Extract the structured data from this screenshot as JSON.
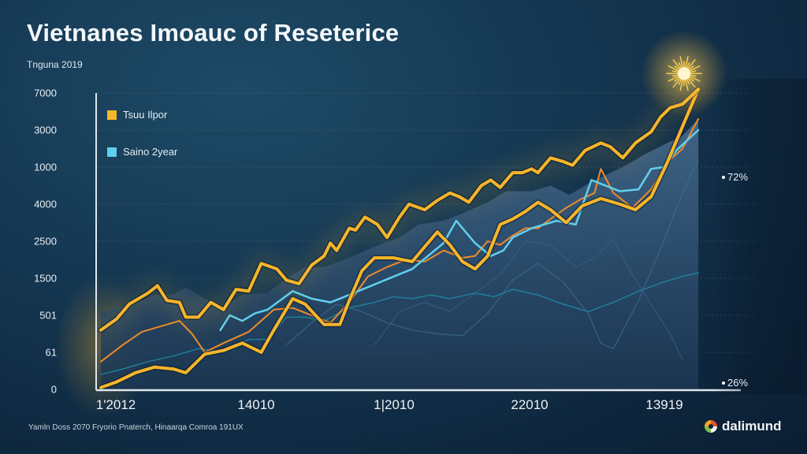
{
  "header": {
    "title": "Vietnanes Imoauc of Reseterice",
    "subtitle": "Tnguna 2019"
  },
  "footer": {
    "source": "Yamln Doss 2070 Fryorio Pnaterch, Hinaarqa Comroa 191UX",
    "brand_name": "dalimund"
  },
  "annotations": [
    {
      "label": "72%",
      "series": "upper-right marker"
    },
    {
      "label": "26%",
      "series": "lower-right marker"
    }
  ],
  "colors": {
    "series_gold": "#f7b52a",
    "series_orange": "#f08a2a",
    "series_cyan": "#5fd0ee",
    "series_teal": "#1f7f9a",
    "area_fill": "#3a5d7e",
    "axis": "#dfe6ec",
    "grid": "#5a7690",
    "burst": "#ffd25a"
  },
  "chart_data": {
    "type": "line",
    "title": "Vietnanes Imoauc of Reseterice",
    "subtitle": "Tnguna 2019",
    "xlabel": "",
    "ylabel": "",
    "x_tick_labels": [
      "1'2012",
      "14010",
      "1|2010",
      "22010",
      "13919"
    ],
    "y_tick_labels": [
      "0",
      "61",
      "501",
      "1500",
      "2500",
      "4000",
      "1000",
      "3000",
      "7000"
    ],
    "y_scale_note": "values below are in tick-band units: 0 = bottom tick ('0'), 8 = top tick ('7000'); x in 0..1 across the plot",
    "ylim": [
      0,
      8
    ],
    "xlim": [
      0,
      1
    ],
    "grid": true,
    "legend": {
      "placement": "top-left",
      "entries": [
        {
          "name": "Tsuu Ilpor",
          "color": "#f7b52a"
        },
        {
          "name": "Saino 2year",
          "color": "#5fd0ee"
        }
      ]
    },
    "series": [
      {
        "name": "Tsuu Ilpor",
        "role": "upper gold line",
        "color": "#f7b52a",
        "width": 4,
        "glow": true,
        "points": [
          [
            0.005,
            1.6
          ],
          [
            0.03,
            1.9
          ],
          [
            0.05,
            2.3
          ],
          [
            0.08,
            2.6
          ],
          [
            0.095,
            2.8
          ],
          [
            0.11,
            2.4
          ],
          [
            0.13,
            2.35
          ],
          [
            0.14,
            1.95
          ],
          [
            0.16,
            1.95
          ],
          [
            0.18,
            2.35
          ],
          [
            0.2,
            2.15
          ],
          [
            0.22,
            2.7
          ],
          [
            0.24,
            2.65
          ],
          [
            0.26,
            3.4
          ],
          [
            0.285,
            3.25
          ],
          [
            0.3,
            2.95
          ],
          [
            0.32,
            2.85
          ],
          [
            0.34,
            3.35
          ],
          [
            0.36,
            3.6
          ],
          [
            0.37,
            3.95
          ],
          [
            0.38,
            3.75
          ],
          [
            0.4,
            4.35
          ],
          [
            0.41,
            4.3
          ],
          [
            0.425,
            4.65
          ],
          [
            0.445,
            4.45
          ],
          [
            0.46,
            4.1
          ],
          [
            0.48,
            4.65
          ],
          [
            0.495,
            5.0
          ],
          [
            0.52,
            4.85
          ],
          [
            0.54,
            5.1
          ],
          [
            0.56,
            5.3
          ],
          [
            0.575,
            5.2
          ],
          [
            0.59,
            5.05
          ],
          [
            0.61,
            5.5
          ],
          [
            0.625,
            5.65
          ],
          [
            0.64,
            5.45
          ],
          [
            0.66,
            5.85
          ],
          [
            0.675,
            5.85
          ],
          [
            0.69,
            5.95
          ],
          [
            0.7,
            5.85
          ],
          [
            0.72,
            6.25
          ],
          [
            0.74,
            6.15
          ],
          [
            0.755,
            6.05
          ],
          [
            0.775,
            6.45
          ],
          [
            0.8,
            6.65
          ],
          [
            0.815,
            6.55
          ],
          [
            0.835,
            6.25
          ],
          [
            0.855,
            6.65
          ],
          [
            0.88,
            6.95
          ],
          [
            0.895,
            7.35
          ],
          [
            0.91,
            7.6
          ],
          [
            0.93,
            7.7
          ],
          [
            0.955,
            8.1
          ]
        ]
      },
      {
        "name": "gold-lower",
        "role": "lower gold line",
        "color": "#f7b52a",
        "width": 4,
        "glow": false,
        "points": [
          [
            0.005,
            0.05
          ],
          [
            0.03,
            0.2
          ],
          [
            0.06,
            0.45
          ],
          [
            0.09,
            0.6
          ],
          [
            0.12,
            0.55
          ],
          [
            0.14,
            0.45
          ],
          [
            0.17,
            0.95
          ],
          [
            0.2,
            1.05
          ],
          [
            0.23,
            1.25
          ],
          [
            0.26,
            1.0
          ],
          [
            0.28,
            1.6
          ],
          [
            0.31,
            2.45
          ],
          [
            0.33,
            2.3
          ],
          [
            0.36,
            1.75
          ],
          [
            0.385,
            1.75
          ],
          [
            0.4,
            2.4
          ],
          [
            0.42,
            3.2
          ],
          [
            0.44,
            3.55
          ],
          [
            0.47,
            3.55
          ],
          [
            0.5,
            3.45
          ],
          [
            0.52,
            3.85
          ],
          [
            0.54,
            4.25
          ],
          [
            0.56,
            3.9
          ],
          [
            0.58,
            3.45
          ],
          [
            0.6,
            3.25
          ],
          [
            0.62,
            3.6
          ],
          [
            0.64,
            4.45
          ],
          [
            0.66,
            4.6
          ],
          [
            0.68,
            4.8
          ],
          [
            0.7,
            5.05
          ],
          [
            0.72,
            4.85
          ],
          [
            0.745,
            4.5
          ],
          [
            0.77,
            4.95
          ],
          [
            0.8,
            5.15
          ],
          [
            0.83,
            5.0
          ],
          [
            0.855,
            4.85
          ],
          [
            0.88,
            5.2
          ],
          [
            0.905,
            6.1
          ],
          [
            0.93,
            7.1
          ],
          [
            0.955,
            8.1
          ]
        ]
      },
      {
        "name": "orange",
        "role": "orange line",
        "color": "#f08a2a",
        "width": 2,
        "glow": false,
        "points": [
          [
            0.005,
            0.75
          ],
          [
            0.04,
            1.2
          ],
          [
            0.07,
            1.55
          ],
          [
            0.1,
            1.7
          ],
          [
            0.13,
            1.85
          ],
          [
            0.15,
            1.5
          ],
          [
            0.17,
            1.0
          ],
          [
            0.2,
            1.25
          ],
          [
            0.24,
            1.55
          ],
          [
            0.28,
            2.15
          ],
          [
            0.31,
            2.2
          ],
          [
            0.34,
            2.0
          ],
          [
            0.37,
            1.8
          ],
          [
            0.4,
            2.35
          ],
          [
            0.43,
            3.05
          ],
          [
            0.46,
            3.3
          ],
          [
            0.49,
            3.5
          ],
          [
            0.52,
            3.45
          ],
          [
            0.55,
            3.75
          ],
          [
            0.58,
            3.55
          ],
          [
            0.6,
            3.6
          ],
          [
            0.62,
            4.0
          ],
          [
            0.64,
            3.9
          ],
          [
            0.66,
            4.15
          ],
          [
            0.68,
            4.35
          ],
          [
            0.7,
            4.35
          ],
          [
            0.72,
            4.6
          ],
          [
            0.745,
            4.9
          ],
          [
            0.77,
            5.15
          ],
          [
            0.79,
            5.3
          ],
          [
            0.8,
            5.95
          ],
          [
            0.82,
            5.3
          ],
          [
            0.85,
            4.9
          ],
          [
            0.88,
            5.4
          ],
          [
            0.91,
            6.2
          ],
          [
            0.93,
            6.5
          ],
          [
            0.955,
            7.3
          ]
        ]
      },
      {
        "name": "Saino 2year",
        "role": "cyan line",
        "color": "#5fd0ee",
        "width": 2.5,
        "glow": false,
        "points": [
          [
            0.195,
            1.6
          ],
          [
            0.21,
            2.0
          ],
          [
            0.23,
            1.85
          ],
          [
            0.25,
            2.05
          ],
          [
            0.27,
            2.15
          ],
          [
            0.31,
            2.65
          ],
          [
            0.34,
            2.45
          ],
          [
            0.37,
            2.35
          ],
          [
            0.385,
            2.45
          ],
          [
            0.5,
            3.25
          ],
          [
            0.55,
            3.95
          ],
          [
            0.57,
            4.55
          ],
          [
            0.6,
            3.95
          ],
          [
            0.625,
            3.6
          ],
          [
            0.645,
            3.75
          ],
          [
            0.66,
            4.1
          ],
          [
            0.69,
            4.35
          ],
          [
            0.73,
            4.55
          ],
          [
            0.76,
            4.45
          ],
          [
            0.785,
            5.65
          ],
          [
            0.8,
            5.55
          ],
          [
            0.83,
            5.35
          ],
          [
            0.86,
            5.4
          ],
          [
            0.88,
            5.95
          ],
          [
            0.9,
            6.0
          ],
          [
            0.92,
            6.45
          ],
          [
            0.955,
            7.0
          ]
        ]
      },
      {
        "name": "teal",
        "role": "faint teal line",
        "color": "#1f7f9a",
        "width": 1.5,
        "glow": false,
        "points": [
          [
            0.005,
            0.4
          ],
          [
            0.04,
            0.55
          ],
          [
            0.08,
            0.75
          ],
          [
            0.12,
            0.9
          ],
          [
            0.16,
            1.1
          ],
          [
            0.2,
            1.0
          ],
          [
            0.24,
            1.35
          ],
          [
            0.27,
            1.35
          ],
          [
            0.3,
            1.95
          ],
          [
            0.33,
            1.95
          ],
          [
            0.36,
            1.85
          ],
          [
            0.4,
            2.2
          ],
          [
            0.44,
            2.35
          ],
          [
            0.47,
            2.5
          ],
          [
            0.5,
            2.45
          ],
          [
            0.53,
            2.55
          ],
          [
            0.56,
            2.45
          ],
          [
            0.6,
            2.6
          ],
          [
            0.63,
            2.5
          ],
          [
            0.66,
            2.7
          ],
          [
            0.7,
            2.55
          ],
          [
            0.74,
            2.3
          ],
          [
            0.78,
            2.1
          ],
          [
            0.82,
            2.35
          ],
          [
            0.86,
            2.65
          ],
          [
            0.9,
            2.9
          ],
          [
            0.93,
            3.05
          ],
          [
            0.955,
            3.15
          ]
        ]
      }
    ],
    "background_area": {
      "name": "shaded area",
      "color": "#3a5d7e",
      "upper": [
        [
          0.005,
          2.1
        ],
        [
          0.05,
          2.25
        ],
        [
          0.09,
          2.55
        ],
        [
          0.12,
          2.55
        ],
        [
          0.14,
          2.75
        ],
        [
          0.17,
          2.45
        ],
        [
          0.2,
          2.25
        ],
        [
          0.23,
          2.55
        ],
        [
          0.27,
          2.6
        ],
        [
          0.3,
          3.0
        ],
        [
          0.33,
          3.3
        ],
        [
          0.36,
          3.3
        ],
        [
          0.4,
          3.55
        ],
        [
          0.44,
          3.85
        ],
        [
          0.48,
          4.1
        ],
        [
          0.51,
          4.45
        ],
        [
          0.55,
          4.55
        ],
        [
          0.58,
          4.75
        ],
        [
          0.62,
          5.05
        ],
        [
          0.65,
          5.35
        ],
        [
          0.69,
          5.35
        ],
        [
          0.72,
          5.5
        ],
        [
          0.75,
          5.25
        ],
        [
          0.78,
          5.55
        ],
        [
          0.81,
          5.8
        ],
        [
          0.84,
          6.05
        ],
        [
          0.87,
          6.35
        ],
        [
          0.9,
          6.6
        ],
        [
          0.93,
          6.85
        ],
        [
          0.955,
          7.3
        ]
      ]
    },
    "faint_lines": [
      {
        "color": "#3f6b8e",
        "points": [
          [
            0.3,
            1.2
          ],
          [
            0.34,
            1.8
          ],
          [
            0.38,
            2.3
          ],
          [
            0.42,
            2.1
          ],
          [
            0.46,
            1.8
          ],
          [
            0.5,
            1.6
          ],
          [
            0.54,
            1.5
          ],
          [
            0.58,
            1.45
          ],
          [
            0.62,
            2.05
          ],
          [
            0.66,
            2.95
          ],
          [
            0.7,
            3.4
          ],
          [
            0.74,
            2.9
          ],
          [
            0.78,
            2.05
          ],
          [
            0.8,
            1.25
          ],
          [
            0.82,
            1.1
          ],
          [
            0.86,
            2.4
          ],
          [
            0.9,
            4.0
          ],
          [
            0.93,
            5.3
          ],
          [
            0.955,
            6.2
          ]
        ]
      },
      {
        "color": "#34607f",
        "points": [
          [
            0.44,
            1.2
          ],
          [
            0.48,
            2.1
          ],
          [
            0.52,
            2.35
          ],
          [
            0.56,
            2.1
          ],
          [
            0.6,
            2.6
          ],
          [
            0.64,
            3.1
          ],
          [
            0.68,
            4.0
          ],
          [
            0.72,
            3.9
          ],
          [
            0.76,
            3.3
          ],
          [
            0.79,
            3.55
          ],
          [
            0.82,
            4.05
          ],
          [
            0.85,
            3.1
          ],
          [
            0.88,
            2.3
          ],
          [
            0.91,
            1.5
          ],
          [
            0.93,
            0.8
          ]
        ]
      }
    ],
    "annotations": [
      {
        "label": "72%",
        "y": 5.65,
        "placement": "right"
      },
      {
        "label": "26%",
        "y": 0.2,
        "placement": "right"
      }
    ],
    "highlight": {
      "type": "starburst",
      "at": [
        0.955,
        8.1
      ]
    }
  }
}
